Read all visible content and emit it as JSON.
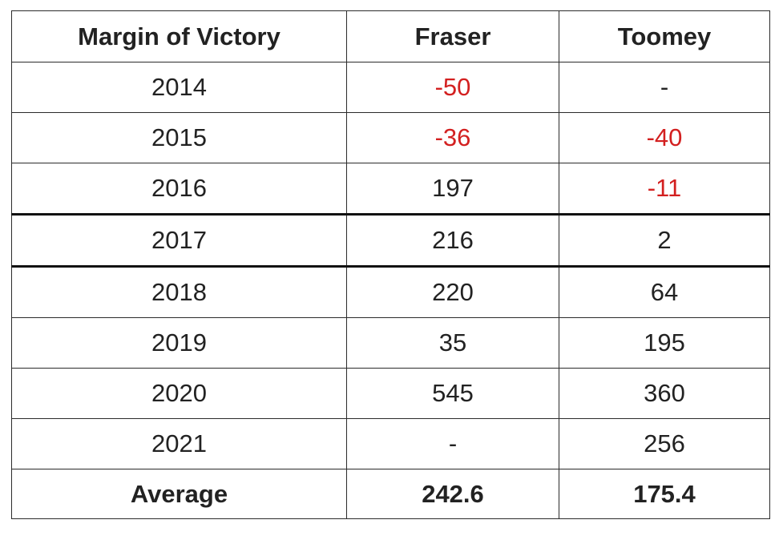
{
  "table": {
    "headers": [
      "Margin of Victory",
      "Fraser",
      "Toomey"
    ],
    "rows": [
      {
        "year": "2014",
        "fraser": "-50",
        "toomey": "-"
      },
      {
        "year": "2015",
        "fraser": "-36",
        "toomey": "-40"
      },
      {
        "year": "2016",
        "fraser": "197",
        "toomey": "-11"
      },
      {
        "year": "2017",
        "fraser": "216",
        "toomey": "2"
      },
      {
        "year": "2018",
        "fraser": "220",
        "toomey": "64"
      },
      {
        "year": "2019",
        "fraser": "35",
        "toomey": "195"
      },
      {
        "year": "2020",
        "fraser": "545",
        "toomey": "360"
      },
      {
        "year": "2021",
        "fraser": "-",
        "toomey": "256"
      }
    ],
    "average": {
      "label": "Average",
      "fraser": "242.6",
      "toomey": "175.4"
    }
  },
  "colors": {
    "negative": "#d32020",
    "text": "#222222",
    "border": "#2b2b2b"
  }
}
